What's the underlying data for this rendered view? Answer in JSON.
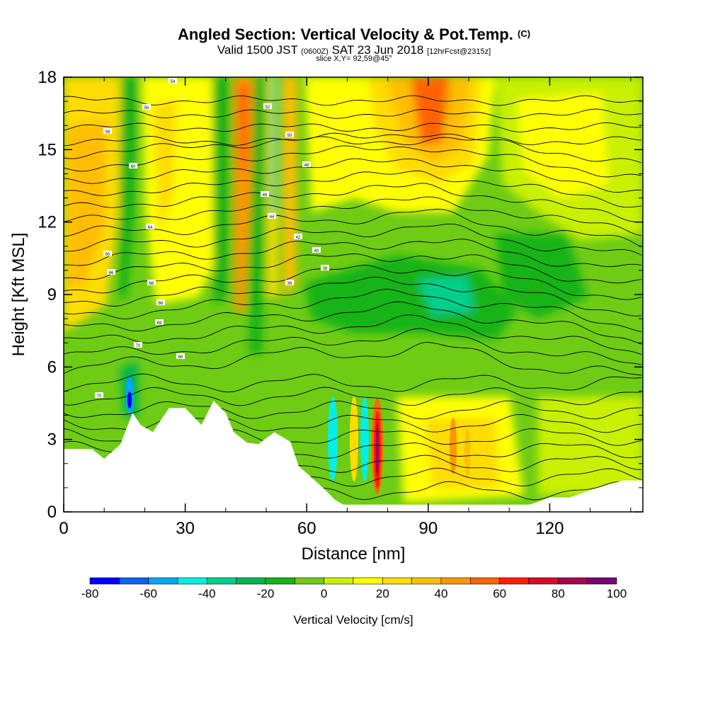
{
  "title": {
    "main": "Angled Section: Vertical Velocity & Pot.Temp.",
    "main_unit": "(C)",
    "valid_prefix": "Valid 1500 JST",
    "valid_utc": "(0600Z)",
    "valid_date": "SAT 23 Jun 2018",
    "forecast": "[12hrFcst@2315z]",
    "slice": "slice X,Y= 92,59@45°"
  },
  "chart_data": {
    "type": "heatmap",
    "xlabel": "Distance [nm]",
    "ylabel": "Height [Kft MSL]",
    "xlim": [
      0,
      143
    ],
    "ylim": [
      0,
      18
    ],
    "x_ticks": [
      "0",
      "30",
      "60",
      "90",
      "120"
    ],
    "y_ticks": [
      "0",
      "3",
      "6",
      "9",
      "12",
      "15",
      "18"
    ],
    "colorbar": {
      "label": "Vertical Velocity [cm/s]",
      "tick_labels": [
        "-80",
        "-60",
        "-40",
        "-20",
        "0",
        "20",
        "40",
        "60",
        "80",
        "100"
      ],
      "levels": [
        -80,
        -70,
        -60,
        -50,
        -40,
        -30,
        -20,
        -10,
        0,
        10,
        20,
        30,
        40,
        50,
        60,
        70,
        80,
        90,
        100
      ],
      "colors": [
        "#0000ff",
        "#0a64f5",
        "#00a8f5",
        "#00f0e6",
        "#00d08c",
        "#00b450",
        "#16b414",
        "#6ecc14",
        "#c8f000",
        "#ffff00",
        "#ffdc00",
        "#ffbe00",
        "#ff9600",
        "#ff6400",
        "#ff1e00",
        "#dc0a28",
        "#aa0050",
        "#780078"
      ]
    },
    "terrain_profile": {
      "x": [
        0,
        7,
        10,
        14,
        17,
        19,
        22,
        24,
        26,
        30,
        34,
        37,
        40,
        42,
        45,
        48,
        52,
        56,
        58,
        60,
        64,
        67,
        69,
        72,
        80,
        90,
        100,
        110,
        115,
        120,
        125,
        130,
        138,
        143
      ],
      "y": [
        2.6,
        2.6,
        2.2,
        2.8,
        4.1,
        3.6,
        3.3,
        3.8,
        4.3,
        4.3,
        3.6,
        4.6,
        4.1,
        3.3,
        2.9,
        2.8,
        3.3,
        2.9,
        1.9,
        1.6,
        1.0,
        0.5,
        0.3,
        0.3,
        0.3,
        0.3,
        0.3,
        0.3,
        0.3,
        0.6,
        0.6,
        0.9,
        1.3,
        1.3
      ]
    },
    "contour_labels": [
      "70",
      "70",
      "68",
      "69",
      "66",
      "66",
      "66",
      "65",
      "64",
      "60",
      "58",
      "56",
      "54",
      "52",
      "50",
      "48",
      "46",
      "44",
      "42",
      "40",
      "38",
      "36"
    ]
  }
}
